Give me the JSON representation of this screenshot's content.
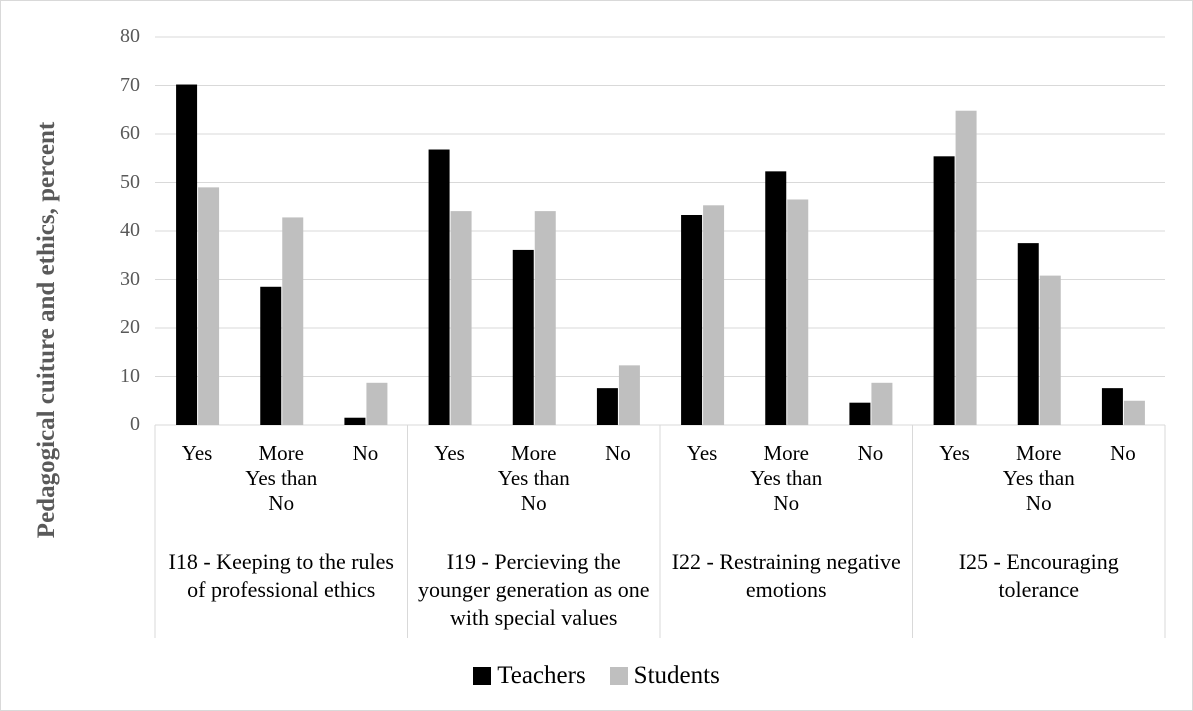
{
  "chart_data": {
    "type": "bar",
    "y_axis_label": "Pedagogical cuiture and ethics, percent",
    "groups": [
      "I18 - Keeping to the rules of professional ethics",
      "I19 - Percieving the younger generation as one with special values",
      "I22 - Restraining negative emotions",
      "I25 - Encouraging tolerance"
    ],
    "categories": [
      "Yes",
      "More Yes than No",
      "No",
      "Yes",
      "More Yes than No",
      "No",
      "Yes",
      "More Yes than No",
      "No",
      "Yes",
      "More Yes than No",
      "No"
    ],
    "series": [
      {
        "name": "Teachers",
        "color": "#000000",
        "values": [
          70.2,
          28.5,
          1.5,
          56.8,
          36.1,
          7.6,
          43.3,
          52.3,
          4.6,
          55.4,
          37.5,
          7.6
        ]
      },
      {
        "name": "Students",
        "color": "#bfbfbf",
        "values": [
          49,
          42.8,
          8.7,
          44.1,
          44.1,
          12.3,
          45.3,
          46.5,
          8.7,
          64.8,
          30.8,
          5.0
        ]
      }
    ],
    "ylim": [
      0,
      80
    ],
    "yticks": [
      0,
      10,
      20,
      30,
      40,
      50,
      60,
      70,
      80
    ],
    "grid": true,
    "legend": "bottom"
  }
}
